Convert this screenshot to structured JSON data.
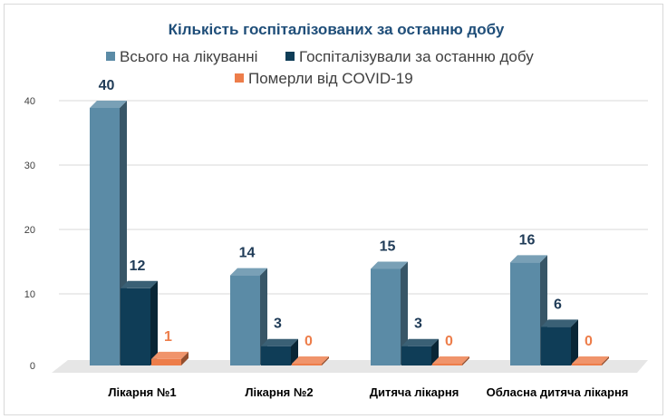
{
  "chart_data": {
    "type": "bar",
    "title": "Кількість госпіталізованих за останню добу",
    "categories": [
      "Лікарня №1",
      "Лікарня №2",
      "Дитяча лікарня",
      "Обласна дитяча лікарня"
    ],
    "series": [
      {
        "name": "Всього на лікуванні",
        "values": [
          40,
          14,
          15,
          16
        ],
        "color": "#5b8ba6",
        "label_color": "#1f3b57"
      },
      {
        "name": "Госпіталізували за останню добу",
        "values": [
          12,
          3,
          3,
          6
        ],
        "color": "#0f3d57",
        "label_color": "#1f3b57"
      },
      {
        "name": "Померли від COVID-19",
        "values": [
          1,
          0,
          0,
          0
        ],
        "color": "#ed7d4a",
        "label_color": "#ed7d4a"
      }
    ],
    "yticks": [
      0,
      10,
      20,
      30,
      40
    ],
    "ylim": [
      0,
      40
    ],
    "grid": true,
    "legend_position": "top",
    "xlabel": "",
    "ylabel": ""
  }
}
